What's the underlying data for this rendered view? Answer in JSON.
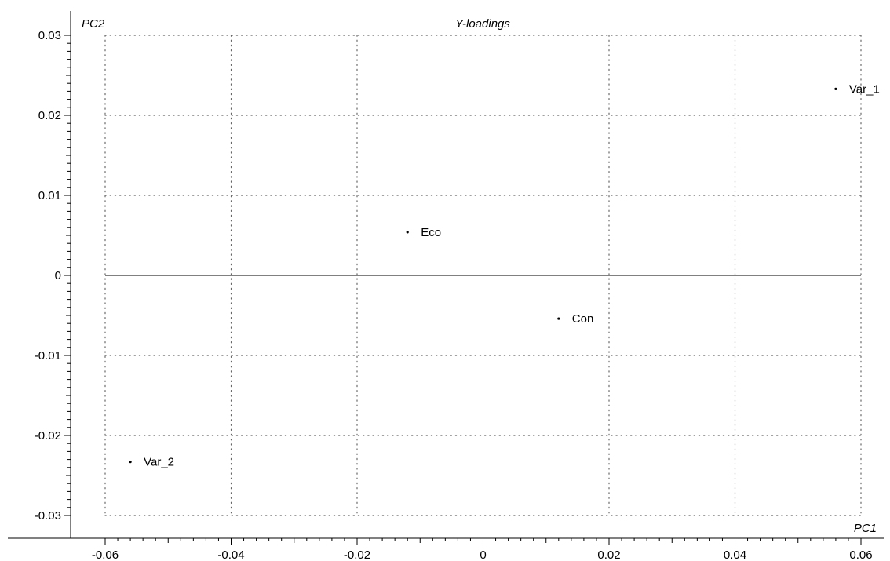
{
  "chart_data": {
    "type": "scatter",
    "title": "Y-loadings",
    "xlabel": "PC1",
    "ylabel": "PC2",
    "xlim": [
      -0.06,
      0.06
    ],
    "ylim": [
      -0.03,
      0.03
    ],
    "x_ticks": [
      -0.06,
      -0.04,
      -0.02,
      0,
      0.02,
      0.04,
      0.06
    ],
    "x_tick_labels": [
      "-0.06",
      "-0.04",
      "-0.02",
      "0",
      "0.02",
      "0.04",
      "0.06"
    ],
    "y_ticks": [
      -0.03,
      -0.02,
      -0.01,
      0,
      0.01,
      0.02,
      0.03
    ],
    "y_tick_labels": [
      "-0.03",
      "-0.02",
      "-0.01",
      "0",
      "0.01",
      "0.02",
      "0.03"
    ],
    "grid": true,
    "reference_lines": {
      "x": 0,
      "y": 0
    },
    "points": [
      {
        "label": "Var_1",
        "x": 0.056,
        "y": 0.0233
      },
      {
        "label": "Eco",
        "x": -0.012,
        "y": 0.0054
      },
      {
        "label": "Con",
        "x": 0.012,
        "y": -0.0054
      },
      {
        "label": "Var_2",
        "x": -0.056,
        "y": -0.0233
      }
    ],
    "colors": {
      "marks": "#000000",
      "grid": "#666666",
      "background": "#ffffff"
    }
  }
}
